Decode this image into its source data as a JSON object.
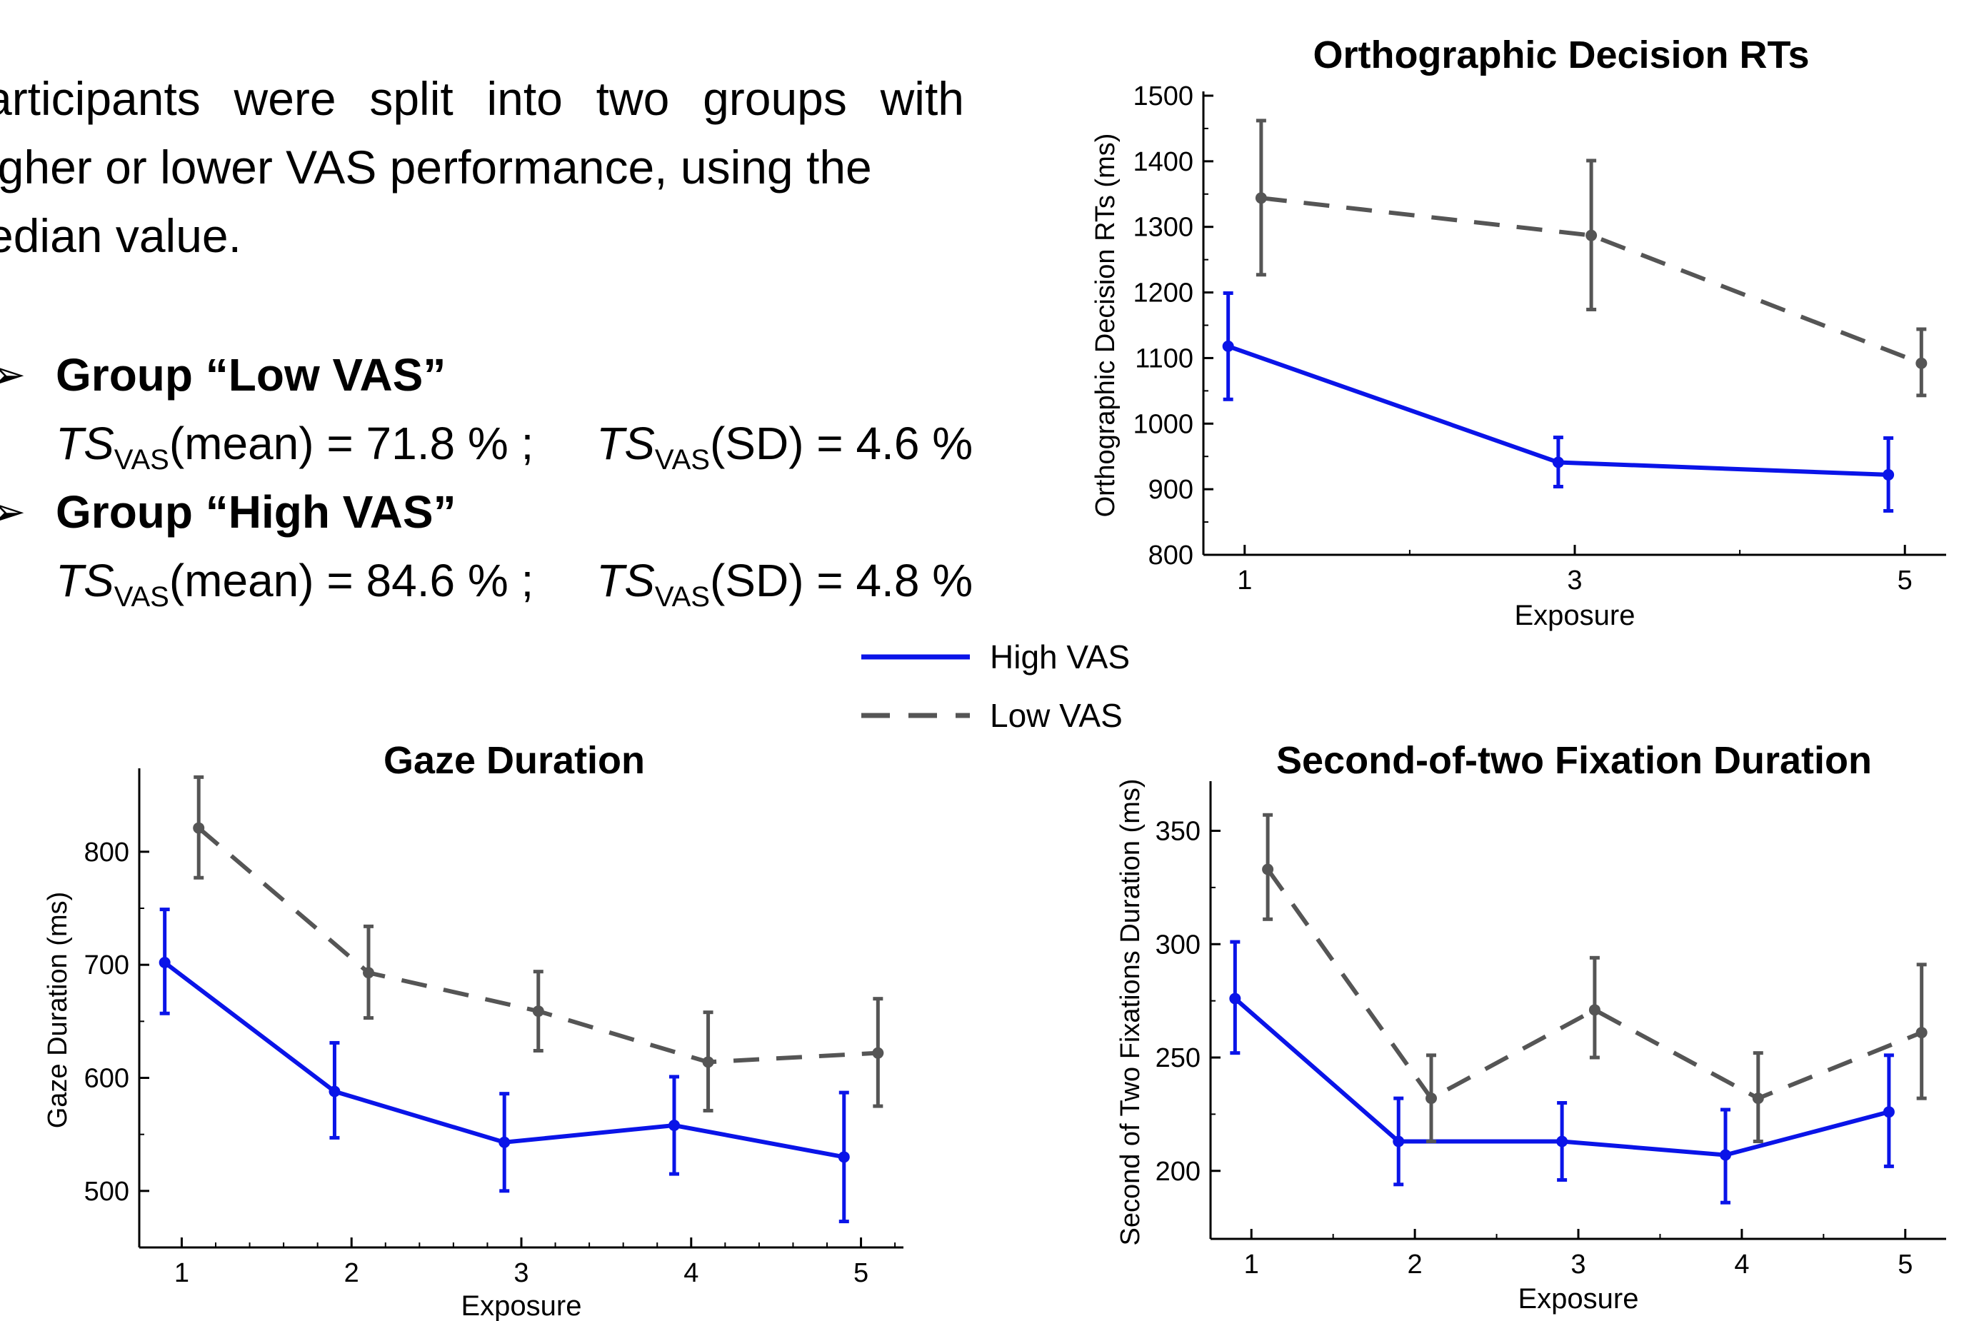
{
  "intro": {
    "lines": [
      "articipants were split into two groups with",
      "igher or lower VAS performance, using the",
      "edian value."
    ]
  },
  "groups": [
    {
      "title": "Group “Low VAS”",
      "mean_text": "(mean) = 71.8 % ;",
      "sd_text": "(SD) = 4.6 %"
    },
    {
      "title": "Group “High VAS”",
      "mean_text": "(mean) = 84.6 % ;",
      "sd_text": "(SD) = 4.8 %"
    }
  ],
  "ts_label": "TS",
  "ts_subscript": "VAS",
  "legend": {
    "items": [
      {
        "label": "High VAS",
        "color": "#0a14e8",
        "style": "solid"
      },
      {
        "label": "Low VAS",
        "color": "#555555",
        "style": "dashed"
      }
    ]
  },
  "chart_data": [
    {
      "id": "rt",
      "type": "line",
      "title": "Orthographic Decision RTs",
      "xlabel": "Exposure",
      "ylabel": "Orthographic Decision RTs (ms)",
      "xlim": [
        0.75,
        5.25
      ],
      "ylim": [
        800,
        1500
      ],
      "xticks": [
        1,
        3,
        5
      ],
      "xminor": [
        2,
        4
      ],
      "yticks": [
        800,
        900,
        1000,
        1100,
        1200,
        1300,
        1400,
        1500
      ],
      "series": [
        {
          "name": "High VAS",
          "color": "#0a14e8",
          "dashed": false,
          "offset": -0.1,
          "x": [
            1,
            3,
            5
          ],
          "y": [
            1118,
            941,
            922
          ],
          "err_low": [
            1037,
            904,
            867
          ],
          "err_high": [
            1199,
            979,
            978
          ]
        },
        {
          "name": "Low VAS",
          "color": "#555555",
          "dashed": true,
          "offset": 0.1,
          "x": [
            1,
            3,
            5
          ],
          "y": [
            1344,
            1287,
            1092
          ],
          "err_low": [
            1227,
            1174,
            1043
          ],
          "err_high": [
            1462,
            1401,
            1144
          ]
        }
      ]
    },
    {
      "id": "gaze",
      "type": "line",
      "title": "Gaze Duration",
      "xlabel": "Exposure",
      "ylabel": "Gaze Duration (ms)",
      "xlim": [
        0.75,
        5.25
      ],
      "ylim": [
        450,
        870
      ],
      "xticks": [
        1,
        2,
        3,
        4,
        5
      ],
      "xminor": [
        1.2,
        1.4,
        1.6,
        1.8,
        2.2,
        2.4,
        2.6,
        2.8,
        3.2,
        3.4,
        3.6,
        3.8,
        4.2,
        4.4,
        4.6,
        4.8,
        5.2
      ],
      "yticks": [
        500,
        600,
        700,
        800
      ],
      "series": [
        {
          "name": "High VAS",
          "color": "#0a14e8",
          "dashed": false,
          "offset": -0.1,
          "x": [
            1,
            2,
            3,
            4,
            5
          ],
          "y": [
            702,
            588,
            543,
            558,
            530
          ],
          "err_low": [
            657,
            547,
            500,
            515,
            473
          ],
          "err_high": [
            749,
            631,
            586,
            601,
            587
          ]
        },
        {
          "name": "Low VAS",
          "color": "#555555",
          "dashed": true,
          "offset": 0.1,
          "x": [
            1,
            2,
            3,
            4,
            5
          ],
          "y": [
            821,
            693,
            659,
            614,
            622
          ],
          "err_low": [
            777,
            653,
            624,
            571,
            575
          ],
          "err_high": [
            866,
            734,
            694,
            658,
            670
          ]
        }
      ]
    },
    {
      "id": "fix",
      "type": "line",
      "title": "Second-of-two Fixation Duration",
      "xlabel": "Exposure",
      "ylabel": "Second of Two Fixations Duration (ms)",
      "xlim": [
        0.75,
        5.25
      ],
      "ylim": [
        170,
        370
      ],
      "xticks": [
        1,
        2,
        3,
        4,
        5
      ],
      "xminor": [
        1.5,
        2.5,
        3.5,
        4.5
      ],
      "yticks": [
        200,
        250,
        300,
        350
      ],
      "series": [
        {
          "name": "High VAS",
          "color": "#0a14e8",
          "dashed": false,
          "offset": -0.1,
          "x": [
            1,
            2,
            3,
            4,
            5
          ],
          "y": [
            276,
            213,
            213,
            207,
            226
          ],
          "err_low": [
            252,
            194,
            196,
            186,
            202
          ],
          "err_high": [
            301,
            232,
            230,
            227,
            251
          ]
        },
        {
          "name": "Low VAS",
          "color": "#555555",
          "dashed": true,
          "offset": 0.1,
          "x": [
            1,
            2,
            3,
            4,
            5
          ],
          "y": [
            333,
            232,
            271,
            232,
            261
          ],
          "err_low": [
            311,
            213,
            250,
            213,
            232
          ],
          "err_high": [
            357,
            251,
            294,
            252,
            291
          ]
        }
      ]
    }
  ]
}
